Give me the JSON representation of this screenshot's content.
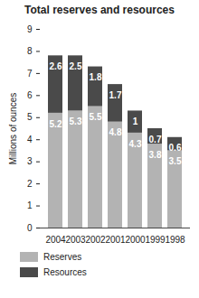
{
  "chart_data": {
    "type": "bar",
    "title": "Total reserves and resources",
    "y_label": "Millions of ounces",
    "categories": [
      "2004",
      "2003",
      "2002",
      "2001",
      "2000",
      "1999",
      "1998"
    ],
    "series": [
      {
        "name": "Reserves",
        "color": "#b3b3b3",
        "values": [
          5.2,
          5.3,
          5.5,
          4.8,
          4.3,
          3.8,
          3.5
        ]
      },
      {
        "name": "Resources",
        "color": "#4a4a4a",
        "values": [
          2.6,
          2.5,
          1.8,
          1.7,
          1.0,
          0.7,
          0.6
        ]
      }
    ],
    "ylim": [
      0,
      9
    ],
    "yticks": [
      0,
      1,
      2,
      3,
      4,
      5,
      6,
      7,
      8,
      9
    ],
    "stacked": true,
    "data_labels": true,
    "legend": "bottom",
    "grid": false
  }
}
